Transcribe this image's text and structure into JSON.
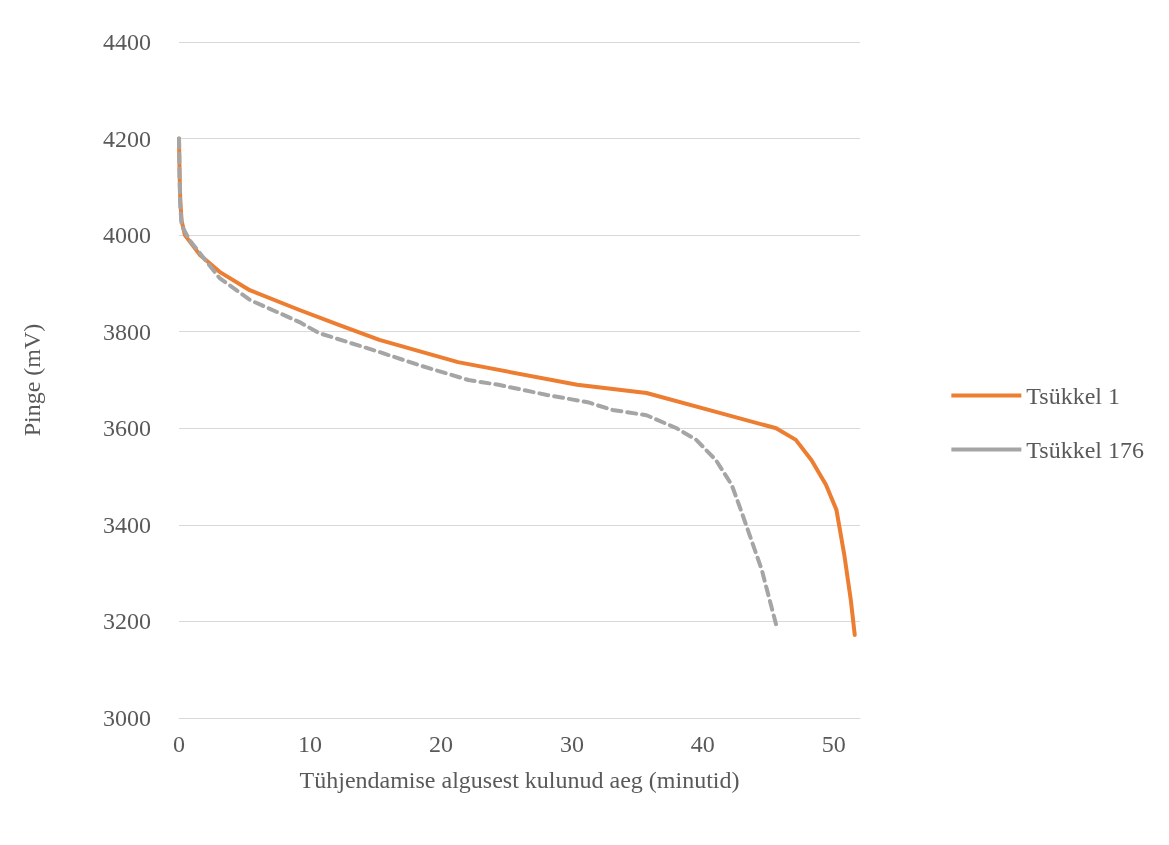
{
  "chart_data": {
    "type": "line",
    "xlabel": "Tühjendamise algusest kulunud aeg (minutid)",
    "ylabel": "Pinge (mV)",
    "xlim": [
      0,
      52
    ],
    "xticks": [
      0,
      10,
      20,
      30,
      40,
      50
    ],
    "ylim": [
      3000,
      4400
    ],
    "yticks": [
      3000,
      3200,
      3400,
      3600,
      3800,
      4000,
      4200,
      4400
    ],
    "grid": "y",
    "legend": "right",
    "marker": "none",
    "series": [
      {
        "name": "Tsükkel 1",
        "color": "#ed7d31",
        "line_style": "solid",
        "x": [
          0,
          0.05,
          0.1,
          0.2,
          0.45,
          1.6,
          3.1,
          5.4,
          9.2,
          12.2,
          15.3,
          21.3,
          30.4,
          35.7,
          41.0,
          45.6,
          47.1,
          48.3,
          49.4,
          50.2,
          50.8,
          51.3,
          51.6
        ],
        "values": [
          4200,
          4120,
          4070,
          4030,
          4000,
          3959,
          3924,
          3886,
          3845,
          3814,
          3783,
          3737,
          3690,
          3673,
          3634,
          3600,
          3576,
          3534,
          3483,
          3431,
          3338,
          3244,
          3172
        ]
      },
      {
        "name": "Tsükkel 176",
        "color": "#a5a5a5",
        "line_style": "dashed",
        "x": [
          0,
          0.05,
          0.1,
          0.2,
          0.8,
          3.1,
          5.4,
          9.2,
          10.7,
          15.3,
          18.3,
          22.1,
          24.4,
          28.1,
          31.2,
          33.1,
          35.7,
          38.0,
          39.5,
          41.0,
          42.2,
          42.9,
          43.7,
          44.5,
          45.0,
          45.6
        ],
        "values": [
          4200,
          4110,
          4060,
          4020,
          3990,
          3911,
          3866,
          3820,
          3797,
          3758,
          3731,
          3700,
          3690,
          3669,
          3654,
          3638,
          3627,
          3600,
          3576,
          3534,
          3483,
          3431,
          3369,
          3307,
          3255,
          3193
        ]
      }
    ]
  }
}
